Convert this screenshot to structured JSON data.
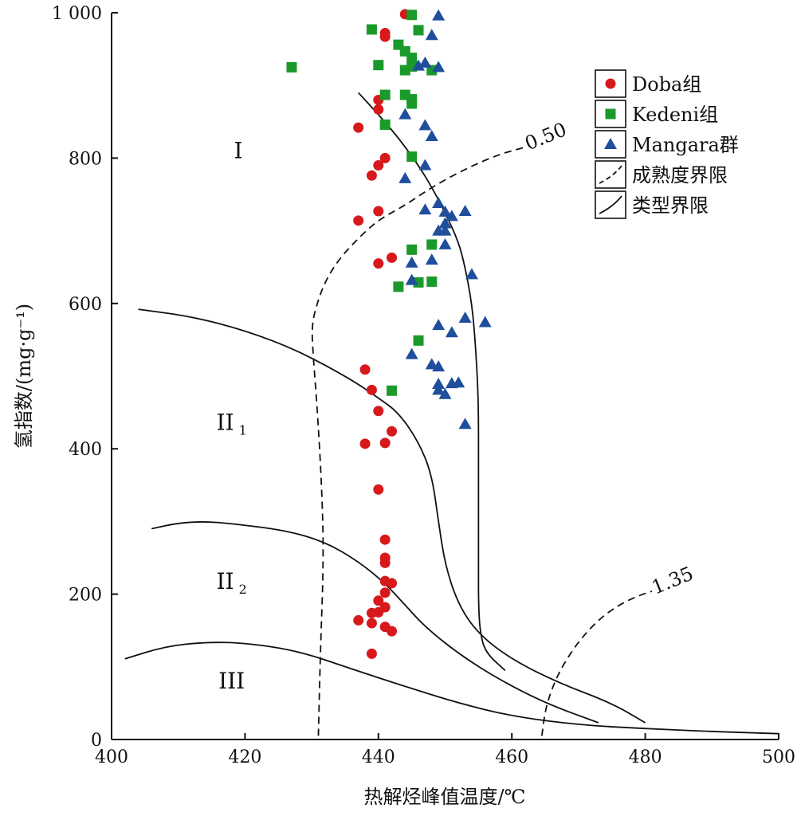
{
  "chart_data": {
    "type": "scatter",
    "xlabel": "热解烃峰值温度/℃",
    "ylabel": "氢指数/(mg·g⁻¹)",
    "xlim": [
      400,
      500
    ],
    "ylim": [
      0,
      1000
    ],
    "x_ticks": [
      400,
      420,
      440,
      460,
      480,
      500
    ],
    "y_ticks": [
      0,
      200,
      400,
      600,
      800,
      1000
    ],
    "x_tick_labels": [
      "400",
      "420",
      "440",
      "460",
      "480",
      "500"
    ],
    "y_tick_labels": [
      "0",
      "200",
      "400",
      "600",
      "800",
      "1 000"
    ],
    "grid": false,
    "legend_position": "top-right",
    "series": [
      {
        "name": "Doba组",
        "marker": "circle",
        "color": "#d7191c",
        "points": [
          [
            444,
            998
          ],
          [
            441,
            972
          ],
          [
            441,
            967
          ],
          [
            440,
            880
          ],
          [
            440,
            867
          ],
          [
            437,
            842
          ],
          [
            441,
            800
          ],
          [
            440,
            790
          ],
          [
            439,
            776
          ],
          [
            440,
            727
          ],
          [
            437,
            714
          ],
          [
            440,
            655
          ],
          [
            442,
            663
          ],
          [
            438,
            509
          ],
          [
            439,
            481
          ],
          [
            440,
            452
          ],
          [
            442,
            424
          ],
          [
            441,
            408
          ],
          [
            438,
            407
          ],
          [
            440,
            344
          ],
          [
            441,
            275
          ],
          [
            441,
            250
          ],
          [
            441,
            243
          ],
          [
            441,
            218
          ],
          [
            442,
            215
          ],
          [
            441,
            202
          ],
          [
            440,
            191
          ],
          [
            441,
            182
          ],
          [
            439,
            174
          ],
          [
            440,
            175
          ],
          [
            437,
            164
          ],
          [
            439,
            160
          ],
          [
            441,
            155
          ],
          [
            442,
            149
          ],
          [
            439,
            118
          ]
        ]
      },
      {
        "name": "Kedeni组",
        "marker": "square",
        "color": "#1a9a2a",
        "points": [
          [
            445,
            997
          ],
          [
            439,
            977
          ],
          [
            446,
            976
          ],
          [
            427,
            925
          ],
          [
            443,
            956
          ],
          [
            444,
            947
          ],
          [
            445,
            938
          ],
          [
            440,
            928
          ],
          [
            445,
            926
          ],
          [
            444,
            921
          ],
          [
            448,
            921
          ],
          [
            441,
            887
          ],
          [
            444,
            887
          ],
          [
            445,
            875
          ],
          [
            445,
            881
          ],
          [
            441,
            846
          ],
          [
            445,
            802
          ],
          [
            445,
            674
          ],
          [
            448,
            681
          ],
          [
            443,
            623
          ],
          [
            446,
            629
          ],
          [
            448,
            630
          ],
          [
            446,
            549
          ],
          [
            442,
            480
          ]
        ]
      },
      {
        "name": "Mangara群",
        "marker": "triangle",
        "color": "#1f4e9c",
        "points": [
          [
            449,
            996
          ],
          [
            448,
            969
          ],
          [
            447,
            931
          ],
          [
            446,
            927
          ],
          [
            449,
            925
          ],
          [
            444,
            860
          ],
          [
            447,
            845
          ],
          [
            448,
            830
          ],
          [
            447,
            790
          ],
          [
            444,
            772
          ],
          [
            447,
            729
          ],
          [
            449,
            738
          ],
          [
            450,
            726
          ],
          [
            451,
            720
          ],
          [
            453,
            727
          ],
          [
            450,
            710
          ],
          [
            449,
            700
          ],
          [
            450,
            700
          ],
          [
            450,
            681
          ],
          [
            445,
            656
          ],
          [
            448,
            660
          ],
          [
            445,
            632
          ],
          [
            454,
            640
          ],
          [
            453,
            580
          ],
          [
            449,
            570
          ],
          [
            451,
            560
          ],
          [
            456,
            574
          ],
          [
            445,
            530
          ],
          [
            448,
            516
          ],
          [
            449,
            513
          ],
          [
            451,
            490
          ],
          [
            452,
            491
          ],
          [
            449,
            489
          ],
          [
            449,
            481
          ],
          [
            450,
            475
          ],
          [
            453,
            434
          ]
        ]
      }
    ],
    "type_boundaries": [
      {
        "name": "I/II1",
        "points": [
          [
            437,
            890
          ],
          [
            440,
            860
          ],
          [
            443,
            828
          ],
          [
            446,
            790
          ],
          [
            448,
            760
          ],
          [
            450,
            725
          ],
          [
            452,
            685
          ],
          [
            453,
            650
          ],
          [
            454,
            600
          ],
          [
            454.5,
            550
          ],
          [
            455,
            470
          ],
          [
            455,
            380
          ],
          [
            455,
            300
          ],
          [
            455,
            230
          ],
          [
            455,
            190
          ],
          [
            455.2,
            150
          ],
          [
            456,
            120
          ],
          [
            459,
            95
          ]
        ]
      },
      {
        "name": "II1/II2",
        "points": [
          [
            404,
            592
          ],
          [
            412,
            582
          ],
          [
            420,
            563
          ],
          [
            428,
            535
          ],
          [
            436,
            495
          ],
          [
            440,
            470
          ],
          [
            443,
            450
          ],
          [
            446,
            410
          ],
          [
            448,
            365
          ],
          [
            449,
            300
          ],
          [
            450,
            240
          ],
          [
            452,
            185
          ],
          [
            455,
            145
          ],
          [
            460,
            110
          ],
          [
            467,
            78
          ],
          [
            475,
            50
          ],
          [
            480,
            23
          ]
        ]
      },
      {
        "name": "II2/III",
        "points": [
          [
            406,
            290
          ],
          [
            410,
            298
          ],
          [
            414,
            300
          ],
          [
            418,
            297
          ],
          [
            426,
            288
          ],
          [
            432,
            272
          ],
          [
            437,
            245
          ],
          [
            441,
            215
          ],
          [
            444,
            185
          ],
          [
            447,
            155
          ],
          [
            452,
            118
          ],
          [
            458,
            83
          ],
          [
            465,
            50
          ],
          [
            473,
            23
          ]
        ]
      },
      {
        "name": "III lower",
        "points": [
          [
            402,
            111
          ],
          [
            408,
            128
          ],
          [
            414,
            134
          ],
          [
            420,
            133
          ],
          [
            428,
            122
          ],
          [
            436,
            97
          ],
          [
            444,
            73
          ],
          [
            452,
            50
          ],
          [
            460,
            32
          ],
          [
            470,
            20
          ],
          [
            480,
            15
          ],
          [
            490,
            11
          ],
          [
            500,
            8
          ]
        ]
      }
    ],
    "maturity_boundaries": [
      {
        "label": "0.50",
        "points": [
          [
            431,
            5
          ],
          [
            431.3,
            120
          ],
          [
            431.8,
            250
          ],
          [
            431.5,
            350
          ],
          [
            430.8,
            460
          ],
          [
            430.2,
            530
          ],
          [
            430,
            570
          ],
          [
            430.8,
            600
          ],
          [
            432,
            630
          ],
          [
            434,
            660
          ],
          [
            437,
            690
          ],
          [
            440,
            715
          ],
          [
            444,
            735
          ],
          [
            448,
            760
          ],
          [
            453,
            785
          ],
          [
            458,
            805
          ],
          [
            462,
            815
          ]
        ]
      },
      {
        "label": "1.35",
        "points": [
          [
            464.5,
            5
          ],
          [
            465,
            40
          ],
          [
            466,
            70
          ],
          [
            467.5,
            100
          ],
          [
            470,
            135
          ],
          [
            473,
            165
          ],
          [
            476,
            185
          ],
          [
            479,
            198
          ],
          [
            481,
            204
          ]
        ]
      }
    ],
    "region_labels": [
      {
        "label": "I",
        "sub": "",
        "x": 419,
        "y": 800
      },
      {
        "label": "II",
        "sub": "1",
        "x": 418,
        "y": 426
      },
      {
        "label": "II",
        "sub": "2",
        "x": 418,
        "y": 207
      },
      {
        "label": "III",
        "sub": "",
        "x": 418,
        "y": 70
      }
    ],
    "legend": [
      {
        "label": "Doba组",
        "kind": "circle"
      },
      {
        "label": "Kedeni组",
        "kind": "square"
      },
      {
        "label": "Mangara群",
        "kind": "triangle"
      },
      {
        "label": "成熟度界限",
        "kind": "dashed"
      },
      {
        "label": "类型界限",
        "kind": "solid"
      }
    ]
  }
}
